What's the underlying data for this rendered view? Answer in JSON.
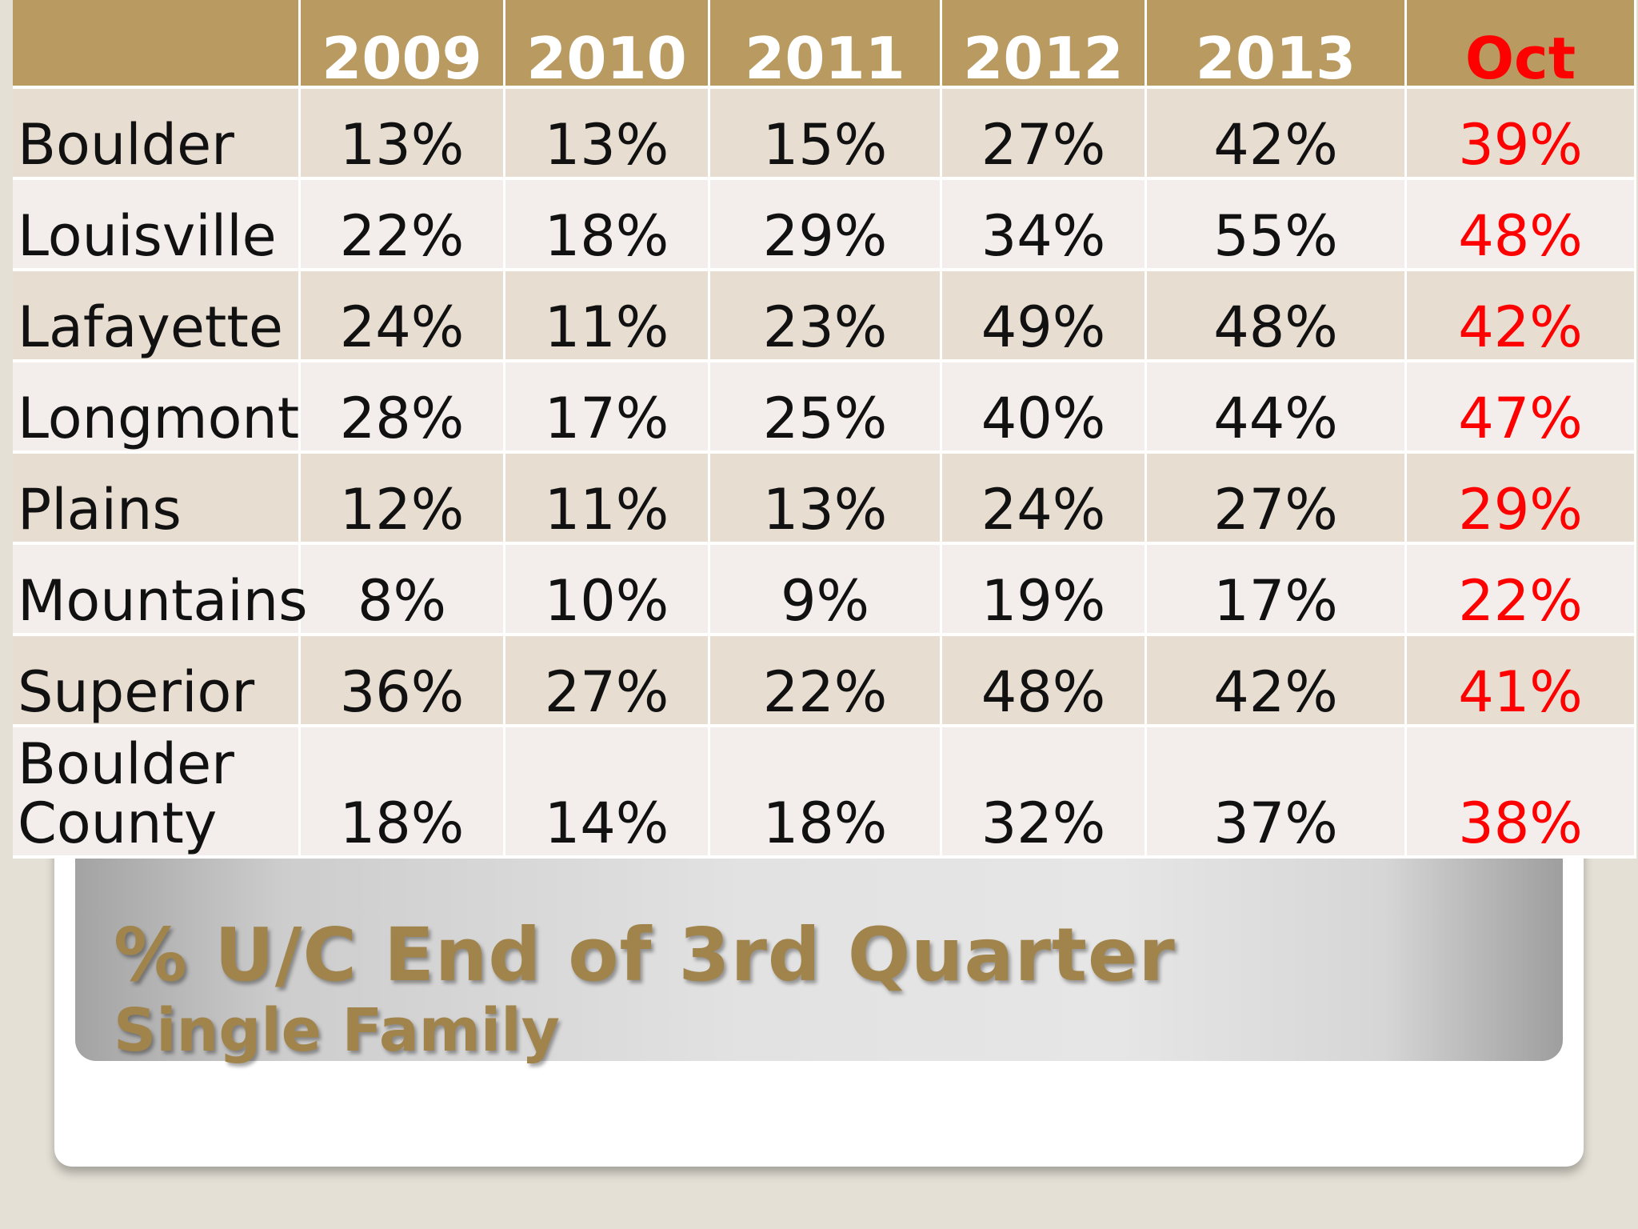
{
  "chart_data": {
    "type": "table",
    "title": "% U/C End of 3rd Quarter",
    "subtitle": "Single Family",
    "columns": [
      "",
      "2009",
      "2010",
      "2011",
      "2012",
      "2013",
      "Oct"
    ],
    "rows": [
      {
        "region": "Boulder",
        "values": [
          "13%",
          "13%",
          "15%",
          "27%",
          "42%",
          "39%"
        ]
      },
      {
        "region": "Louisville",
        "values": [
          "22%",
          "18%",
          "29%",
          "34%",
          "55%",
          "48%"
        ]
      },
      {
        "region": "Lafayette",
        "values": [
          "24%",
          "11%",
          "23%",
          "49%",
          "48%",
          "42%"
        ]
      },
      {
        "region": "Longmont",
        "values": [
          "28%",
          "17%",
          "25%",
          "40%",
          "44%",
          "47%"
        ]
      },
      {
        "region": "Plains",
        "values": [
          "12%",
          "11%",
          "13%",
          "24%",
          "27%",
          "29%"
        ]
      },
      {
        "region": "Mountains",
        "values": [
          "8%",
          "10%",
          "9%",
          "19%",
          "17%",
          "22%"
        ]
      },
      {
        "region": "Superior",
        "values": [
          "36%",
          "27%",
          "22%",
          "48%",
          "42%",
          "41%"
        ]
      },
      {
        "region_line1": "Boulder",
        "region_line2": "County",
        "values": [
          "18%",
          "14%",
          "18%",
          "32%",
          "37%",
          "38%"
        ]
      }
    ],
    "colors": {
      "header": "#b99a61",
      "highlight": "#ff0000",
      "title": "#a0844c"
    }
  }
}
